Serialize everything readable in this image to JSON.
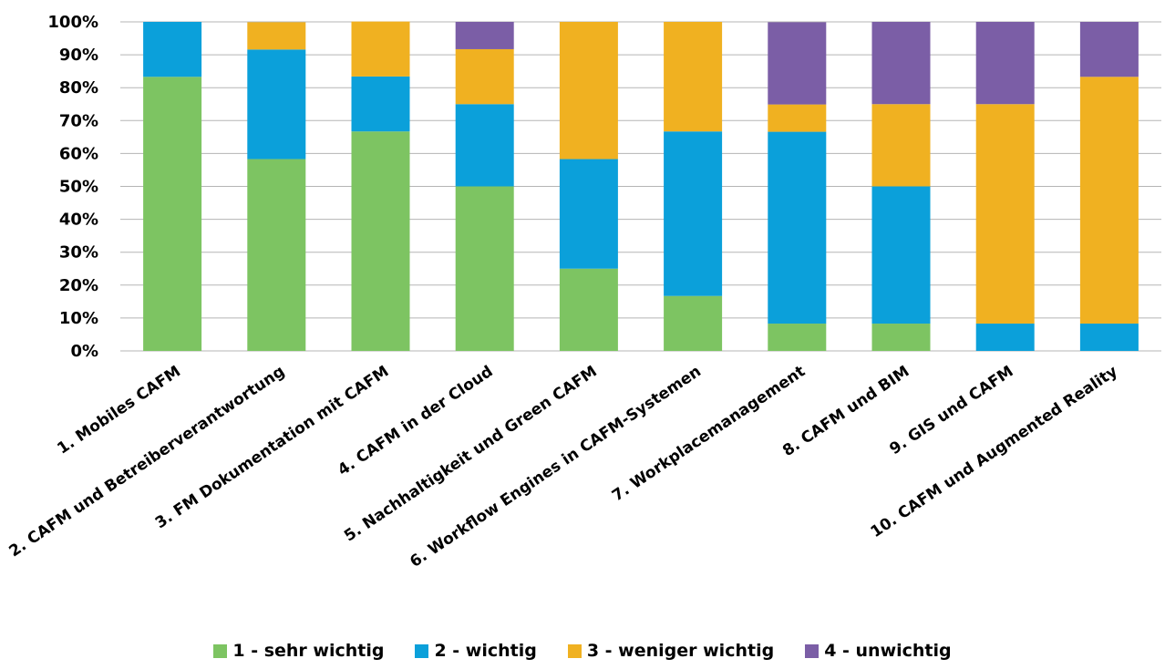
{
  "chart_data": {
    "type": "bar",
    "stacked": true,
    "percent_stacked": true,
    "categories": [
      "1. Mobiles CAFM",
      "2. CAFM und Betreiberverantwortung",
      "3. FM Dokumentation mit CAFM",
      "4. CAFM in der Cloud",
      "5. Nachhaltigkeit und Green CAFM",
      "6. Workflow Engines in CAFM-Systemen",
      "7. Workplacemanagement",
      "8. CAFM und BIM",
      "9. GIS und CAFM",
      "10. CAFM und Augmented Reality"
    ],
    "series": [
      {
        "name": "1 - sehr wichtig",
        "color": "#7dc462",
        "values": [
          83.3,
          58.3,
          66.7,
          50.0,
          25.0,
          16.7,
          8.3,
          8.3,
          0,
          0
        ]
      },
      {
        "name": "2 - wichtig",
        "color": "#0ba0da",
        "values": [
          16.7,
          33.3,
          16.7,
          25.0,
          33.3,
          50.0,
          58.3,
          41.7,
          8.3,
          8.3
        ]
      },
      {
        "name": "3 - weniger wichtig",
        "color": "#f0b121",
        "values": [
          0,
          8.3,
          16.7,
          16.7,
          41.7,
          33.3,
          8.3,
          25.0,
          66.7,
          75.0
        ]
      },
      {
        "name": "4 - unwichtig",
        "color": "#7b5ea6",
        "values": [
          0,
          0,
          0,
          8.3,
          0,
          0,
          25.0,
          25.0,
          25.0,
          16.7
        ]
      }
    ],
    "ylim": [
      0,
      100
    ],
    "yticks": [
      "0%",
      "10%",
      "20%",
      "30%",
      "40%",
      "50%",
      "60%",
      "70%",
      "80%",
      "90%",
      "100%"
    ],
    "grid": true,
    "legend_position": "bottom"
  }
}
